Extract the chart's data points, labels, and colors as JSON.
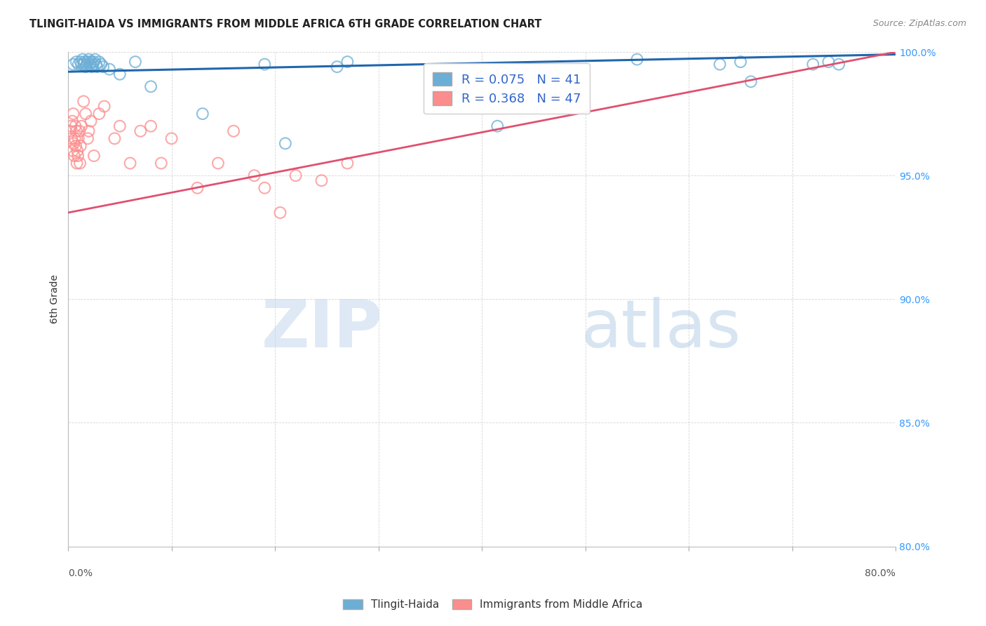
{
  "title": "TLINGIT-HAIDA VS IMMIGRANTS FROM MIDDLE AFRICA 6TH GRADE CORRELATION CHART",
  "source": "Source: ZipAtlas.com",
  "xlabel": "",
  "ylabel": "6th Grade",
  "xlim": [
    0.0,
    80.0
  ],
  "ylim": [
    80.0,
    100.0
  ],
  "xticks": [
    0.0,
    10.0,
    20.0,
    30.0,
    40.0,
    50.0,
    60.0,
    70.0,
    80.0
  ],
  "yticks": [
    80.0,
    85.0,
    90.0,
    95.0,
    100.0
  ],
  "blue_R": 0.075,
  "blue_N": 41,
  "pink_R": 0.368,
  "pink_N": 47,
  "blue_label": "Tlingit-Haida",
  "pink_label": "Immigrants from Middle Africa",
  "blue_color": "#6baed6",
  "pink_color": "#fc8d8d",
  "blue_line_color": "#2166ac",
  "pink_line_color": "#e05070",
  "watermark_zip": "ZIP",
  "watermark_atlas": "atlas",
  "blue_trendline": [
    99.2,
    99.9
  ],
  "pink_trendline": [
    93.5,
    100.0
  ],
  "blue_x": [
    0.5,
    0.8,
    1.0,
    1.2,
    1.3,
    1.4,
    1.5,
    1.6,
    1.7,
    1.8,
    1.9,
    2.0,
    2.1,
    2.2,
    2.3,
    2.4,
    2.5,
    2.6,
    2.7,
    2.8,
    3.0,
    3.2,
    3.4,
    4.0,
    5.0,
    6.5,
    8.0,
    13.0,
    19.0,
    21.0,
    26.0,
    27.0,
    37.5,
    41.5,
    55.0,
    63.0,
    65.0,
    66.0,
    72.0,
    73.5,
    74.5
  ],
  "blue_y": [
    99.5,
    99.6,
    99.5,
    99.6,
    99.5,
    99.7,
    99.5,
    99.6,
    99.4,
    99.5,
    99.6,
    99.7,
    99.5,
    99.6,
    99.4,
    99.5,
    99.6,
    99.7,
    99.5,
    99.4,
    99.6,
    99.5,
    99.4,
    99.3,
    99.1,
    99.6,
    98.6,
    97.5,
    99.5,
    96.3,
    99.4,
    99.6,
    98.2,
    97.0,
    99.7,
    99.5,
    99.6,
    98.8,
    99.5,
    99.6,
    99.5
  ],
  "pink_x": [
    0.2,
    0.3,
    0.35,
    0.4,
    0.45,
    0.5,
    0.55,
    0.6,
    0.65,
    0.7,
    0.75,
    0.8,
    0.85,
    0.9,
    0.95,
    1.0,
    1.1,
    1.15,
    1.2,
    1.3,
    1.5,
    1.7,
    1.9,
    2.0,
    2.2,
    2.5,
    3.0,
    3.5,
    4.5,
    5.0,
    6.0,
    7.0,
    8.0,
    9.0,
    10.0,
    12.5,
    14.5,
    16.0,
    18.0,
    19.0,
    20.5,
    22.0,
    24.5,
    27.0,
    38.0,
    40.0,
    42.0
  ],
  "pink_y": [
    96.8,
    97.0,
    96.5,
    97.2,
    96.0,
    97.5,
    96.3,
    95.8,
    96.5,
    97.0,
    96.2,
    96.8,
    95.5,
    96.0,
    95.8,
    96.5,
    96.8,
    95.5,
    96.2,
    97.0,
    98.0,
    97.5,
    96.5,
    96.8,
    97.2,
    95.8,
    97.5,
    97.8,
    96.5,
    97.0,
    95.5,
    96.8,
    97.0,
    95.5,
    96.5,
    94.5,
    95.5,
    96.8,
    95.0,
    94.5,
    93.5,
    95.0,
    94.8,
    95.5,
    98.5,
    99.0,
    99.2
  ]
}
